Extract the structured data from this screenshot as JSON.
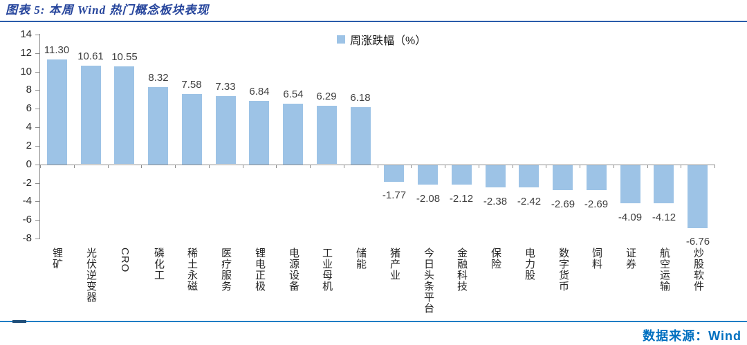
{
  "header": {
    "title": "图表 5: 本周 Wind 热门概念板块表现"
  },
  "chart_data": {
    "type": "bar",
    "title": "本周 Wind 热门概念板块表现",
    "legend": [
      "周涨跌幅（%）"
    ],
    "legend_position": "top-center",
    "grid": false,
    "categories": [
      "锂矿",
      "光伏逆变器",
      "CRO",
      "磷化工",
      "稀土永磁",
      "医疗服务",
      "锂电正极",
      "电源设备",
      "工业母机",
      "储能",
      "猪产业",
      "今日头条平台",
      "金融科技",
      "保险",
      "电力股",
      "数字货币",
      "饲料",
      "证券",
      "航空运输",
      "炒股软件"
    ],
    "values": [
      11.3,
      10.61,
      10.55,
      8.32,
      7.58,
      7.33,
      6.84,
      6.54,
      6.29,
      6.18,
      -1.77,
      -2.08,
      -2.12,
      -2.38,
      -2.42,
      -2.69,
      -2.69,
      -4.09,
      -4.12,
      -6.76
    ],
    "value_labels": [
      "11.30",
      "10.61",
      "10.55",
      "8.32",
      "7.58",
      "7.33",
      "6.84",
      "6.54",
      "6.29",
      "6.18",
      "-1.77",
      "-2.08",
      "-2.12",
      "-2.38",
      "-2.42",
      "-2.69",
      "-2.69",
      "-4.09",
      "-4.12",
      "-6.76"
    ],
    "xlabel": "",
    "ylabel": "",
    "ylim": [
      -8,
      14
    ],
    "ytick_step": 2,
    "yticks": [
      14,
      12,
      10,
      8,
      6,
      4,
      2,
      0,
      -2,
      -4,
      -6,
      -8
    ]
  },
  "footer": {
    "source": "数据来源：Wind"
  },
  "colors": {
    "bar": "#9DC3E6",
    "title": "#26459C",
    "top_rule": "#2A5CAA",
    "bottom_rule": "#1F7DC4",
    "source_text": "#0070C0",
    "axis": "#8C8C8C"
  }
}
